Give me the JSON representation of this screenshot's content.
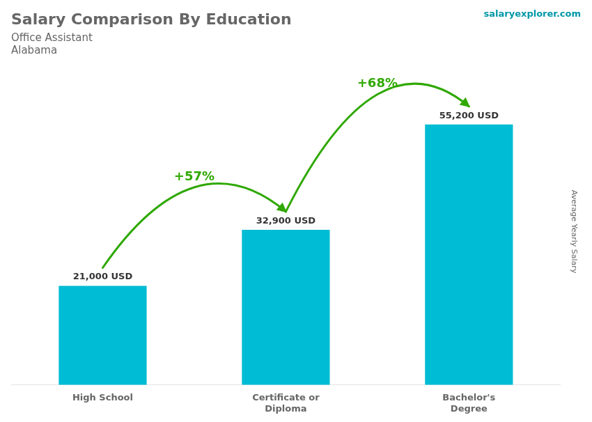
{
  "chart_data": {
    "type": "bar",
    "title": "Salary Comparison By Education",
    "subtitle": [
      "Office Assistant",
      "Alabama"
    ],
    "ylabel": "Average Yearly Salary",
    "categories": [
      "High School",
      "Certificate or\nDiploma",
      "Bachelor's\nDegree"
    ],
    "values": [
      21000,
      32900,
      55200
    ],
    "value_labels": [
      "21,000 USD",
      "32,900 USD",
      "55,200 USD"
    ],
    "data_labels": true,
    "color": "#00bcd4",
    "ylim": [
      0,
      65000
    ],
    "tick_labels": "x",
    "grid": false,
    "annotations": [
      {
        "text": "+57%"
      },
      {
        "text": "+68%"
      },
      {
        "text": "salaryexplorer.com"
      }
    ]
  }
}
